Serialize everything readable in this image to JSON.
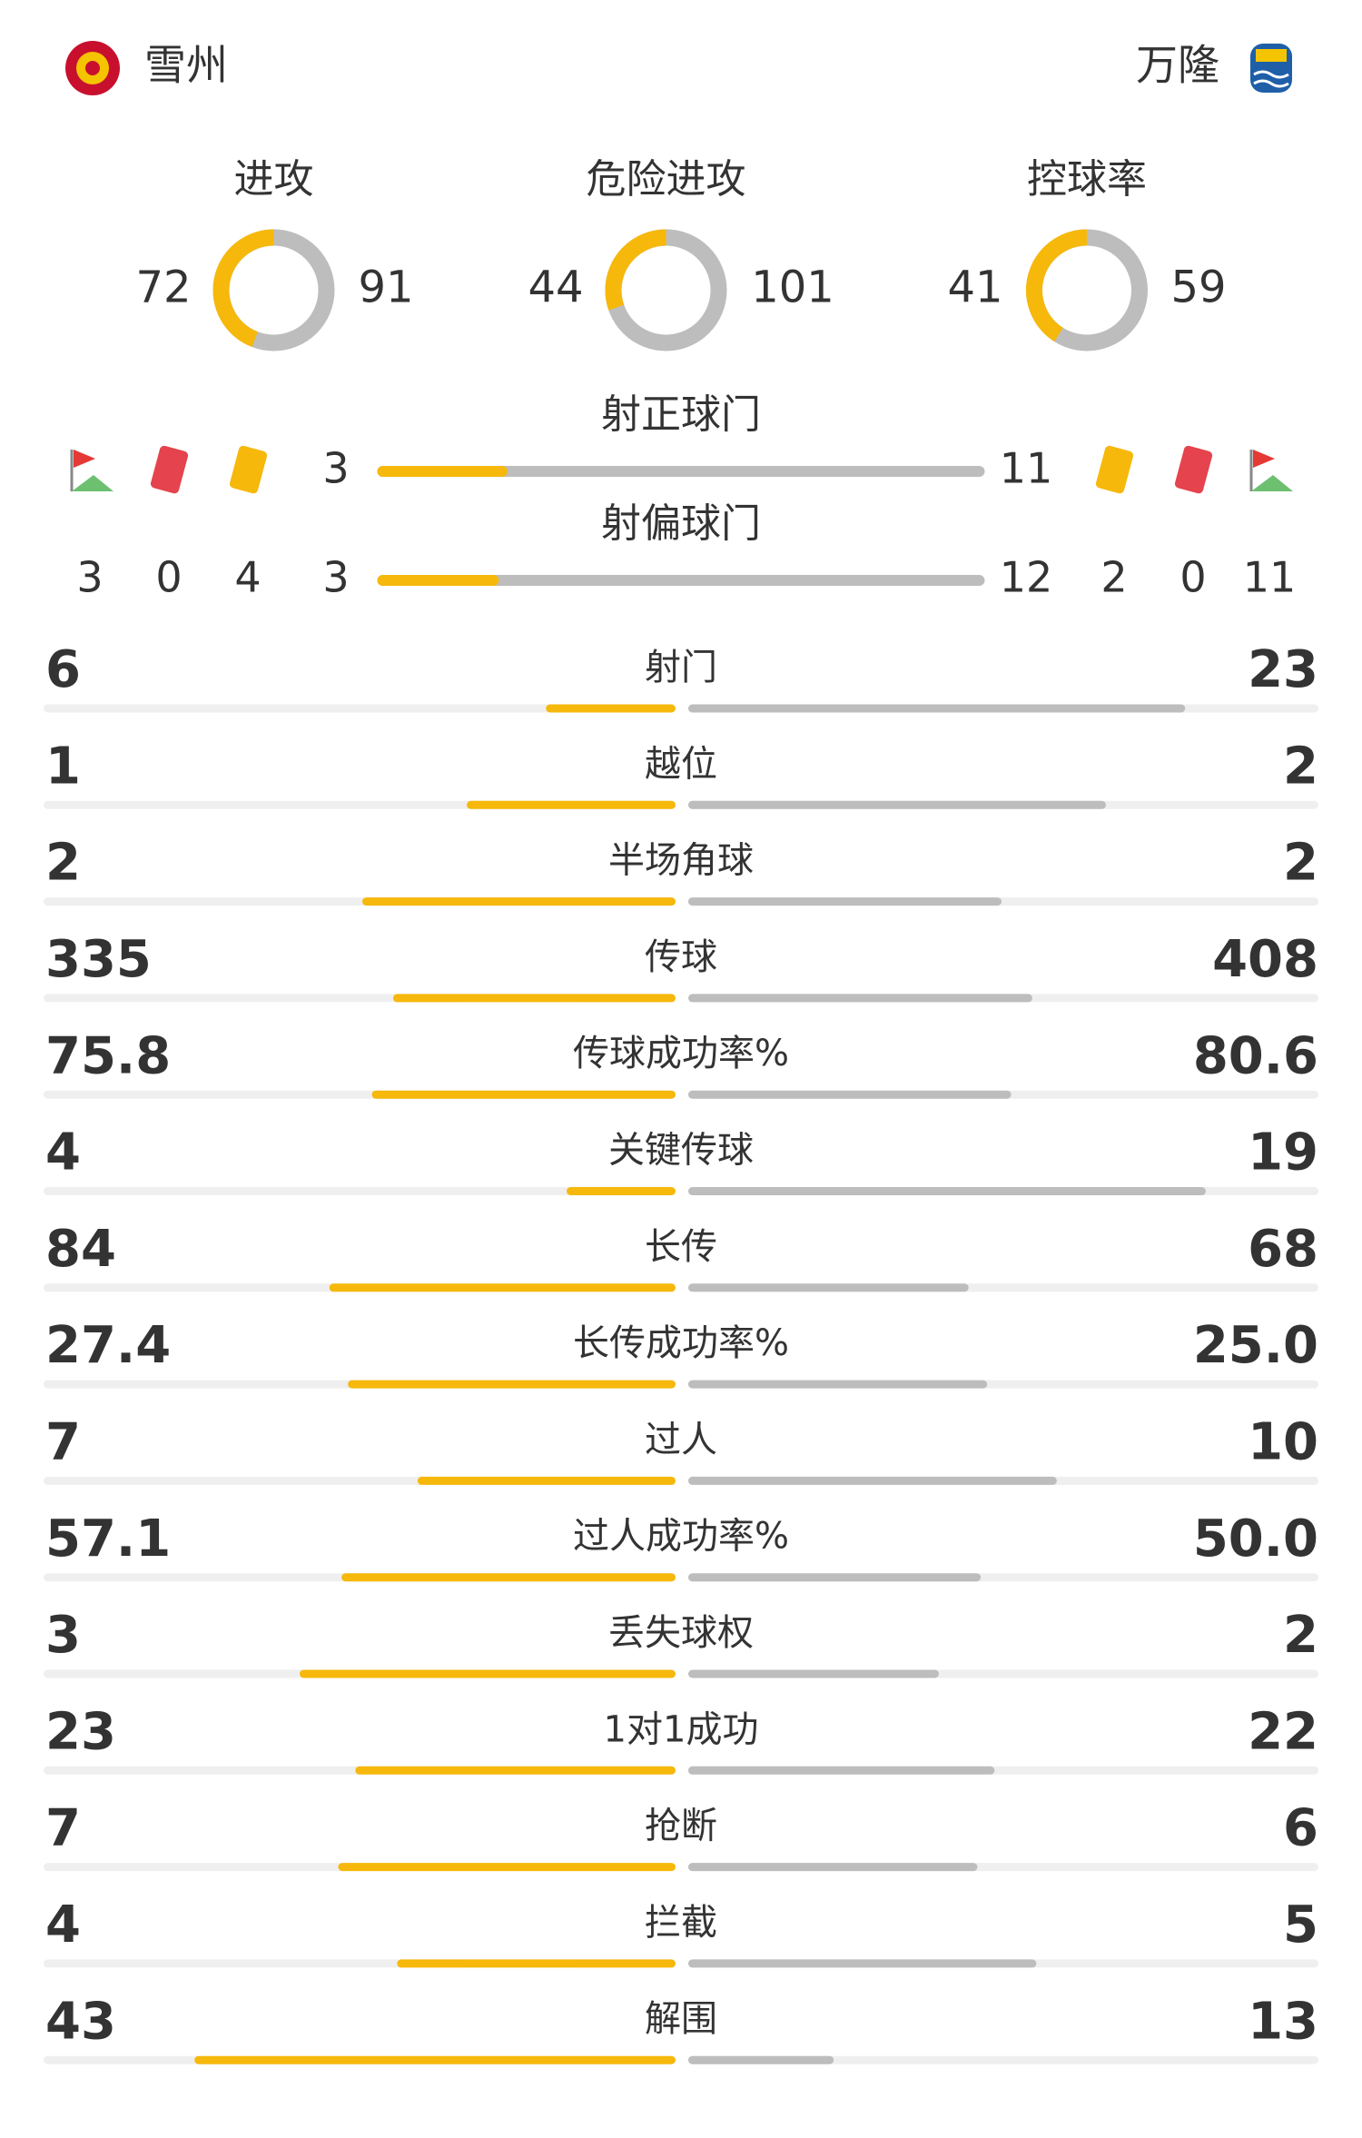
{
  "home": {
    "name": "雪州"
  },
  "away": {
    "name": "万隆"
  },
  "rings": [
    {
      "label": "进攻",
      "home": 72,
      "away": 91
    },
    {
      "label": "危险进攻",
      "home": 44,
      "away": 101
    },
    {
      "label": "控球率",
      "home": 41,
      "away": 59
    }
  ],
  "shot_bars": [
    {
      "label": "射正球门",
      "home": 3,
      "away": 11
    },
    {
      "label": "射偏球门",
      "home": 3,
      "away": 12
    }
  ],
  "events": {
    "home": {
      "corners": 3,
      "red": 0,
      "yellow": 4
    },
    "away": {
      "yellow": 2,
      "red": 0,
      "corners": 11
    }
  },
  "stats": [
    {
      "label": "射门",
      "home": 6,
      "away": 23
    },
    {
      "label": "越位",
      "home": 1,
      "away": 2
    },
    {
      "label": "半场角球",
      "home": 2,
      "away": 2
    },
    {
      "label": "传球",
      "home": 335,
      "away": 408
    },
    {
      "label": "传球成功率%",
      "home": "75.8",
      "away": "80.6"
    },
    {
      "label": "关键传球",
      "home": 4,
      "away": 19
    },
    {
      "label": "长传",
      "home": 84,
      "away": 68
    },
    {
      "label": "长传成功率%",
      "home": "27.4",
      "away": "25.0"
    },
    {
      "label": "过人",
      "home": 7,
      "away": 10
    },
    {
      "label": "过人成功率%",
      "home": "57.1",
      "away": "50.0"
    },
    {
      "label": "丢失球权",
      "home": 3,
      "away": 2
    },
    {
      "label": "1对1成功",
      "home": 23,
      "away": 22
    },
    {
      "label": "抢断",
      "home": 7,
      "away": 6
    },
    {
      "label": "拦截",
      "home": 4,
      "away": 5
    },
    {
      "label": "解围",
      "home": 43,
      "away": 13
    }
  ]
}
